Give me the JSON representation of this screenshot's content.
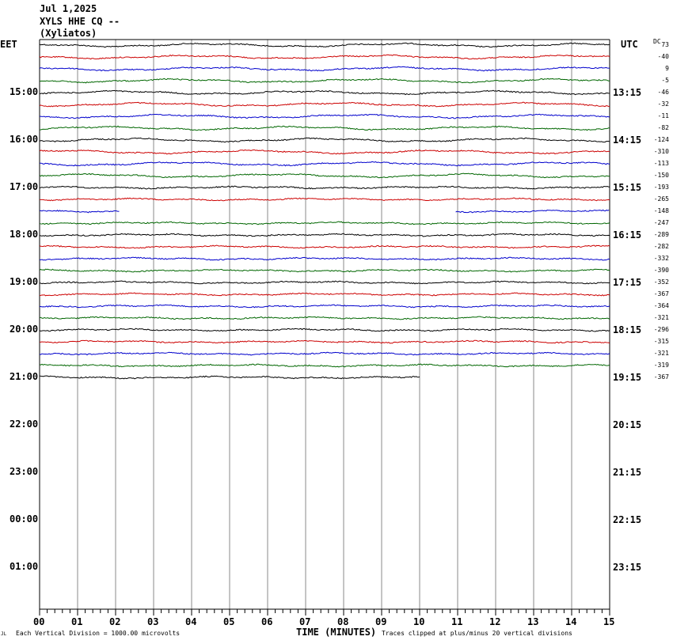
{
  "header": {
    "date": "Jul 1,2025",
    "station": "XYLS HHE CQ --",
    "location": "(Xyliatos)"
  },
  "labels": {
    "left_tz": "EET",
    "right_tz": "UTC",
    "dc": "DC",
    "x_axis_title": "TIME (MINUTES)",
    "footer_left": "Each Vertical Division = 1000.00 microvolts",
    "footer_right": "Traces clipped at plus/minus 20 vertical divisions",
    "corner_mark": "JL"
  },
  "chart_data": {
    "type": "line",
    "title": "XYLS HHE CQ -- (Xyliatos)",
    "xlabel": "TIME (MINUTES)",
    "xlim": [
      0,
      15
    ],
    "x_ticks": [
      "00",
      "01",
      "02",
      "03",
      "04",
      "05",
      "06",
      "07",
      "08",
      "09",
      "10",
      "11",
      "12",
      "13",
      "14",
      "15"
    ],
    "left_hour_labels": [
      "15:00",
      "16:00",
      "17:00",
      "18:00",
      "19:00",
      "20:00",
      "21:00",
      "22:00",
      "23:00",
      "00:00",
      "01:00"
    ],
    "right_hour_labels": [
      "13:15",
      "14:15",
      "15:15",
      "16:15",
      "17:15",
      "18:15",
      "19:15",
      "20:15",
      "21:15",
      "22:15",
      "23:15"
    ],
    "trace_colors": [
      "#000000",
      "#cc0000",
      "#0000cc",
      "#006600"
    ],
    "dc_offsets": [
      "73",
      "-40",
      "9",
      "-5",
      "-46",
      "-32",
      "-11",
      "-82",
      "-124",
      "-310",
      "-113",
      "-150",
      "-193",
      "-265",
      "-148",
      "-247",
      "-289",
      "-282",
      "-332",
      "-390",
      "-352",
      "-367",
      "-364",
      "-321",
      "-296",
      "-315",
      "-321",
      "-319",
      "-367"
    ],
    "trace_count": 29,
    "partial_traces": [
      {
        "index": 14,
        "segments": [
          [
            0,
            2.1
          ],
          [
            10.95,
            15
          ]
        ]
      },
      {
        "index": 28,
        "segments": [
          [
            0,
            10
          ]
        ]
      }
    ]
  }
}
